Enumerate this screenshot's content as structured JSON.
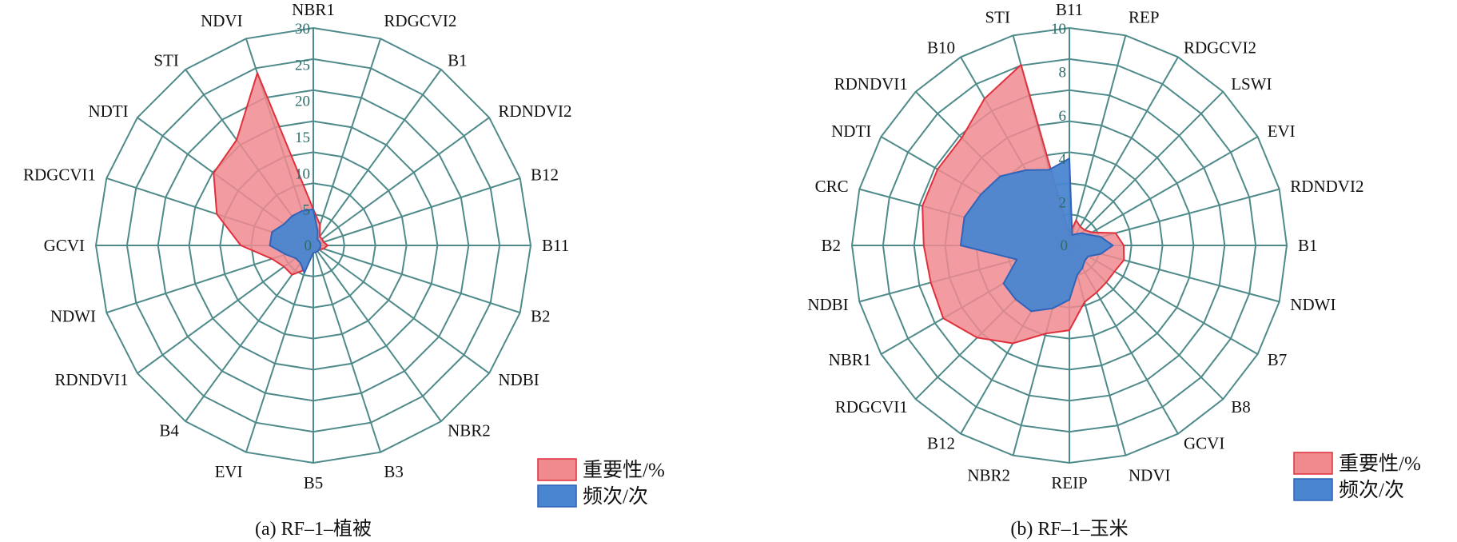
{
  "chart_data": [
    {
      "type": "radar",
      "caption": "(a) RF–1–植被",
      "categories": [
        "NBR1",
        "RDGCVI2",
        "B1",
        "RDNDVI2",
        "B12",
        "B11",
        "B2",
        "NDBI",
        "NBR2",
        "B3",
        "B5",
        "EVI",
        "B4",
        "RDNDVI1",
        "NDWI",
        "GCVI",
        "RDGCVI1",
        "NDTI",
        "STI",
        "NDVI"
      ],
      "rlim": [
        0,
        30
      ],
      "ticks": [
        "0",
        "5",
        "10",
        "15",
        "20",
        "25",
        "30"
      ],
      "tick_values": [
        0,
        5,
        10,
        15,
        20,
        25,
        30
      ],
      "grid": true,
      "legend_position": "bottom-right",
      "series": [
        {
          "name": "重要性/%",
          "color": "#f08a8f",
          "stroke": "#e0303c",
          "values": [
            5,
            3,
            1.5,
            1.5,
            1.5,
            2,
            1.5,
            1,
            1,
            1,
            1,
            3.5,
            5,
            5,
            6,
            10,
            14,
            17,
            18,
            25
          ]
        },
        {
          "name": "频次/次",
          "color": "#4a86d0",
          "stroke": "#2f64ba",
          "values": [
            5,
            2,
            1,
            1,
            1,
            1,
            1,
            1,
            1,
            1,
            1,
            4,
            3,
            3,
            4,
            6,
            6,
            5,
            5,
            5
          ]
        }
      ]
    },
    {
      "type": "radar",
      "caption": "(b) RF–1–玉米",
      "categories": [
        "B11",
        "REP",
        "RDGCVI2",
        "LSWI",
        "EVI",
        "RDNDVI2",
        "B1",
        "NDWI",
        "B7",
        "B8",
        "GCVI",
        "NDVI",
        "REIP",
        "NBR2",
        "B12",
        "RDGCVI1",
        "NBR1",
        "NDBI",
        "B2",
        "CRC",
        "NDTI",
        "RDNDVI1",
        "B10",
        "STI"
      ],
      "rlim": [
        0,
        10
      ],
      "ticks": [
        "0",
        "2",
        "4",
        "6",
        "8",
        "10"
      ],
      "tick_values": [
        0,
        2,
        4,
        6,
        8,
        10
      ],
      "grid": true,
      "legend_position": "bottom-right",
      "series": [
        {
          "name": "重要性/%",
          "color": "#f08a8f",
          "stroke": "#e0303c",
          "values": [
            0.5,
            1.2,
            1,
            1,
            1.2,
            2.2,
            2.5,
            2.6,
            2.4,
            2.4,
            2.5,
            2.7,
            3.9,
            4.2,
            5.2,
            6.0,
            6.7,
            6.6,
            6.7,
            7.0,
            7.0,
            7.0,
            7.8,
            8.6
          ]
        },
        {
          "name": "频次/次",
          "color": "#4a86d0",
          "stroke": "#2f64ba",
          "values": [
            4,
            0.5,
            0.6,
            0.8,
            1.0,
            1.5,
            2.0,
            1.5,
            1.0,
            1.0,
            1.2,
            1.4,
            2.5,
            3.0,
            3.5,
            3.5,
            3.5,
            2.5,
            5.0,
            5.0,
            4.7,
            4.5,
            4.0,
            3.6
          ]
        }
      ]
    }
  ]
}
